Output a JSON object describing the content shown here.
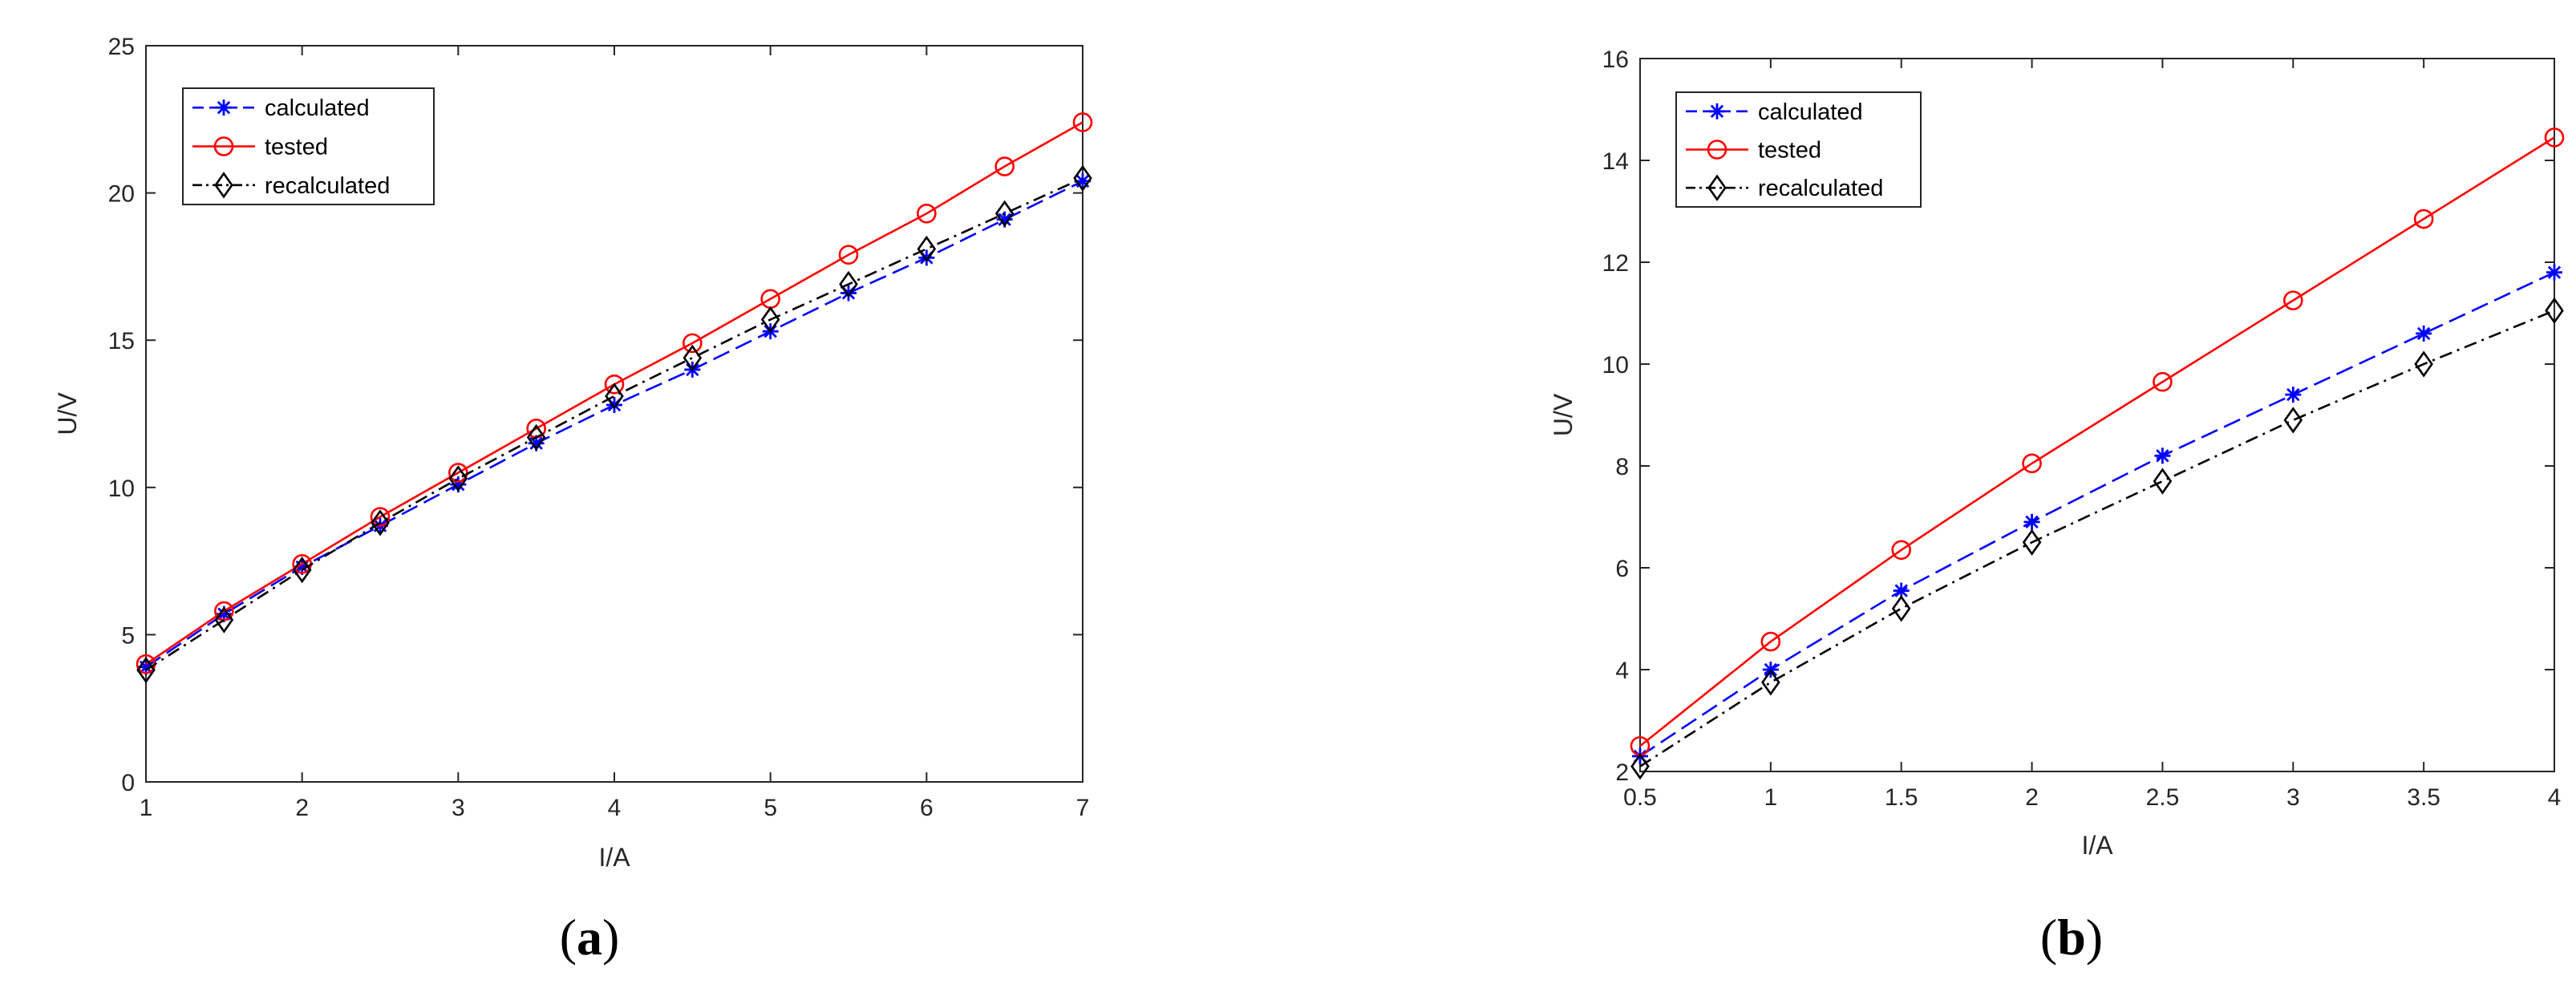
{
  "chart_data": [
    {
      "type": "line",
      "caption_open": "(",
      "caption_letter": "a",
      "caption_close": ")",
      "xlabel": "I/A",
      "ylabel": "U/V",
      "xlim": [
        1,
        7
      ],
      "ylim": [
        0,
        25
      ],
      "xticks": [
        1,
        2,
        3,
        4,
        5,
        6,
        7
      ],
      "yticks": [
        0,
        5,
        10,
        15,
        20,
        25
      ],
      "grid": false,
      "legend_position": "top-left",
      "x": [
        1,
        1.5,
        2,
        2.5,
        3,
        3.5,
        4,
        4.5,
        5,
        5.5,
        6,
        6.5,
        7
      ],
      "series": [
        {
          "name": "calculated",
          "color": "#0000ff",
          "dash": "dashed",
          "marker": "asterisk",
          "values": [
            3.9,
            5.7,
            7.3,
            8.7,
            10.1,
            11.5,
            12.8,
            14.0,
            15.3,
            16.6,
            17.8,
            19.1,
            20.4
          ]
        },
        {
          "name": "tested",
          "color": "#ff0000",
          "dash": "solid",
          "marker": "circle",
          "values": [
            4.0,
            5.8,
            7.4,
            9.0,
            10.5,
            12.0,
            13.5,
            14.9,
            16.4,
            17.9,
            19.3,
            20.9,
            22.4
          ]
        },
        {
          "name": "recalculated",
          "color": "#000000",
          "dash": "dash-dot",
          "marker": "diamond",
          "values": [
            3.8,
            5.5,
            7.2,
            8.8,
            10.3,
            11.7,
            13.1,
            14.4,
            15.7,
            16.9,
            18.1,
            19.3,
            20.5
          ]
        }
      ]
    },
    {
      "type": "line",
      "caption_open": "(",
      "caption_letter": "b",
      "caption_close": ")",
      "xlabel": "I/A",
      "ylabel": "U/V",
      "xlim": [
        0.5,
        4
      ],
      "ylim": [
        2,
        16
      ],
      "xticks": [
        0.5,
        1,
        1.5,
        2,
        2.5,
        3,
        3.5,
        4
      ],
      "yticks": [
        2,
        4,
        6,
        8,
        10,
        12,
        14,
        16
      ],
      "grid": false,
      "legend_position": "top-left",
      "x": [
        0.5,
        1,
        1.5,
        2,
        2.5,
        3,
        3.5,
        4
      ],
      "series": [
        {
          "name": "calculated",
          "color": "#0000ff",
          "dash": "dashed",
          "marker": "asterisk",
          "values": [
            2.3,
            4.0,
            5.55,
            6.9,
            8.2,
            9.4,
            10.6,
            11.8
          ]
        },
        {
          "name": "tested",
          "color": "#ff0000",
          "dash": "solid",
          "marker": "circle",
          "values": [
            2.5,
            4.55,
            6.35,
            8.05,
            9.65,
            11.25,
            12.85,
            14.45
          ]
        },
        {
          "name": "recalculated",
          "color": "#000000",
          "dash": "dash-dot",
          "marker": "diamond",
          "values": [
            2.1,
            3.75,
            5.2,
            6.5,
            7.7,
            8.9,
            10.0,
            11.05
          ]
        }
      ]
    }
  ]
}
